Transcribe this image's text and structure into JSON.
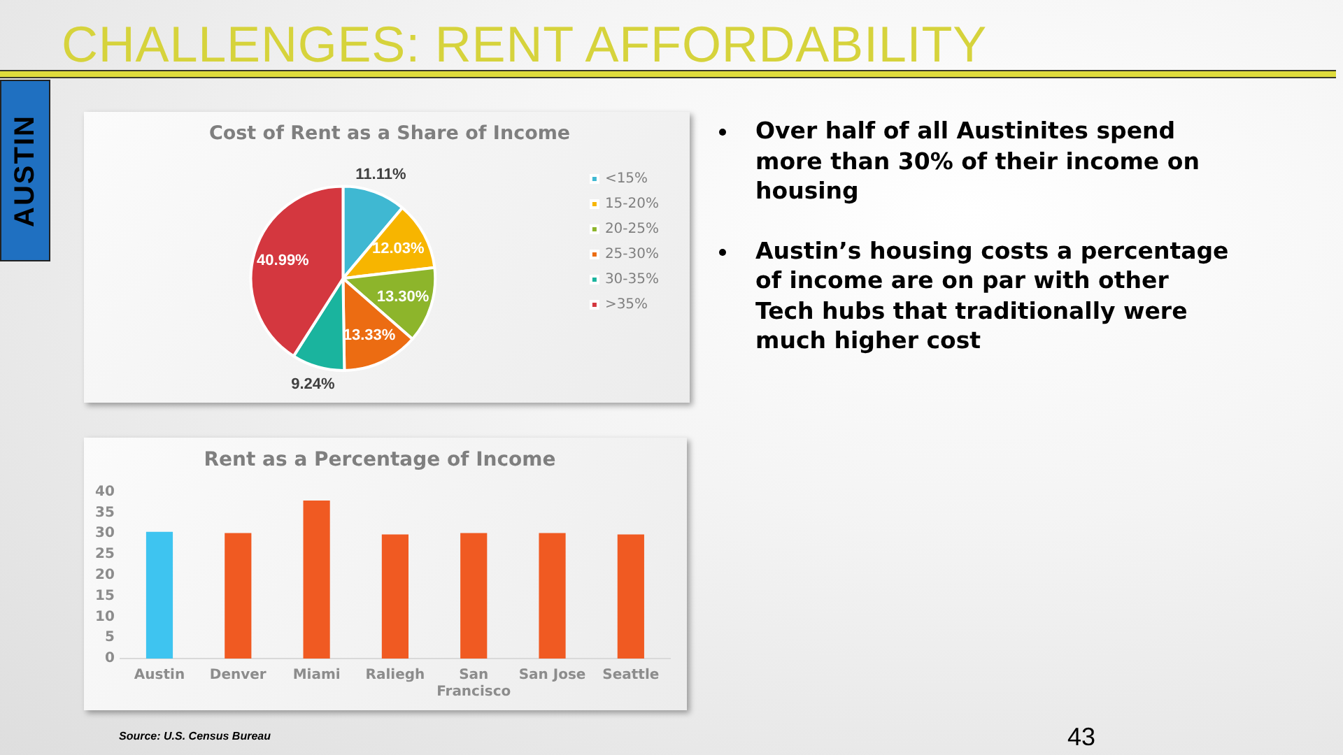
{
  "chart_data": [
    {
      "type": "other",
      "title": "CHALLENGES: RENT AFFORDABILITY",
      "subtitle": "AUSTIN",
      "annotations": [
        "Over half of all Austinites spend more than 30% of their income on housing",
        "Austin’s housing costs a percentage of income are on par with other Tech hubs that traditionally were much higher cost",
        "43"
      ]
    },
    {
      "type": "pie",
      "title": "Cost of Rent as a Share of Income",
      "categories": [
        "<15%",
        "15-20%",
        "20-25%",
        "25-30%",
        "30-35%",
        ">35%"
      ],
      "values": [
        11.11,
        12.03,
        13.3,
        13.33,
        9.24,
        40.99
      ],
      "colors": [
        "#3fb8d2",
        "#f7b500",
        "#8db52b",
        "#ec6c12",
        "#1ab49e",
        "#d4373f"
      ],
      "value_labels": [
        "11.11%",
        "12.03%",
        "13.30%",
        "13.33%",
        "9.24%",
        "40.99%"
      ],
      "legend": "right"
    },
    {
      "type": "bar",
      "title": "Rent as a Percentage of Income",
      "categories": [
        "Austin",
        "Denver",
        "Miami",
        "Raliegh",
        "San Francisco",
        "San Jose",
        "Seattle"
      ],
      "values": [
        30.4,
        30.1,
        37.9,
        29.8,
        30.1,
        30.1,
        29.8
      ],
      "colors": [
        "#3ec4f0",
        "#f05a22",
        "#f05a22",
        "#f05a22",
        "#f05a22",
        "#f05a22",
        "#f05a22"
      ],
      "ylim": [
        0,
        40
      ],
      "yticks": [
        0,
        5,
        10,
        15,
        20,
        25,
        30,
        35,
        40
      ],
      "annotations": [
        "Source: U.S. Census Bureau"
      ]
    }
  ]
}
